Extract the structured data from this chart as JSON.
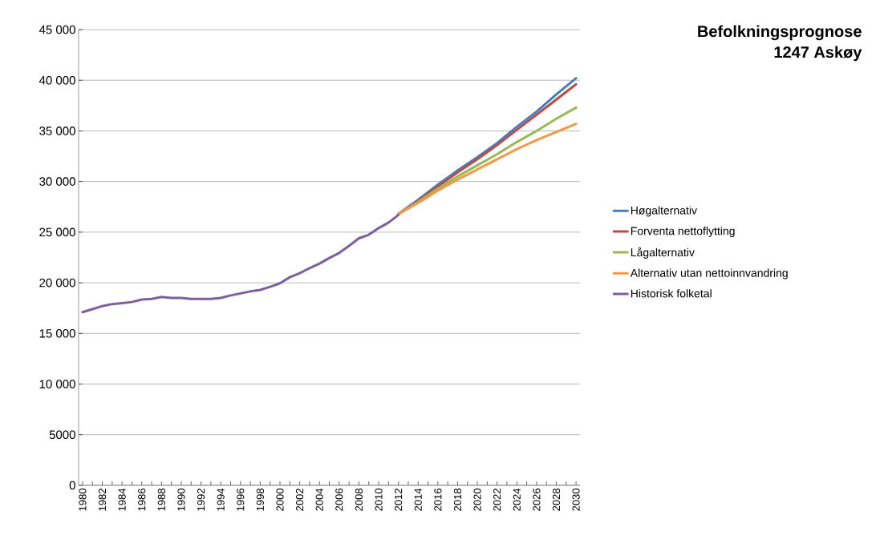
{
  "chart_data": {
    "type": "line",
    "title": "Befolkningsprognose",
    "subtitle": "1247 Askøy",
    "categories": [
      "1980",
      null,
      "1982",
      null,
      "1984",
      null,
      "1986",
      null,
      "1988",
      null,
      "1990",
      null,
      "1992",
      null,
      "1994",
      null,
      "1996",
      null,
      "1998",
      null,
      "2000",
      null,
      "2002",
      null,
      "2004",
      null,
      "2006",
      null,
      "2008",
      null,
      "2010",
      null,
      "2012",
      null,
      "2014",
      null,
      "2016",
      null,
      "2018",
      null,
      "2020",
      null,
      "2022",
      null,
      "2024",
      null,
      "2026",
      null,
      "2028",
      null,
      "2030"
    ],
    "series": [
      {
        "name": "Høgalternativ",
        "color": "#4a7ebb",
        "values": [
          null,
          null,
          null,
          null,
          null,
          null,
          null,
          null,
          null,
          null,
          null,
          null,
          null,
          null,
          null,
          null,
          null,
          null,
          null,
          null,
          null,
          null,
          null,
          null,
          null,
          null,
          null,
          null,
          null,
          null,
          null,
          null,
          26800,
          27500,
          28200,
          28950,
          29700,
          30400,
          31100,
          31750,
          32400,
          33100,
          33800,
          34600,
          35400,
          36150,
          36900,
          37750,
          38600,
          39400,
          40200
        ]
      },
      {
        "name": "Forventa nettoflytting",
        "color": "#be4b48",
        "values": [
          null,
          null,
          null,
          null,
          null,
          null,
          null,
          null,
          null,
          null,
          null,
          null,
          null,
          null,
          null,
          null,
          null,
          null,
          null,
          null,
          null,
          null,
          null,
          null,
          null,
          null,
          null,
          null,
          null,
          null,
          null,
          null,
          26800,
          27450,
          28100,
          28800,
          29500,
          30200,
          30900,
          31550,
          32200,
          32900,
          33600,
          34350,
          35100,
          35850,
          36600,
          37350,
          38100,
          38850,
          39600
        ]
      },
      {
        "name": "Lågalternativ",
        "color": "#98b954",
        "values": [
          null,
          null,
          null,
          null,
          null,
          null,
          null,
          null,
          null,
          null,
          null,
          null,
          null,
          null,
          null,
          null,
          null,
          null,
          null,
          null,
          null,
          null,
          null,
          null,
          null,
          null,
          null,
          null,
          null,
          null,
          null,
          null,
          26800,
          27400,
          28000,
          28650,
          29300,
          29900,
          30500,
          31050,
          31600,
          32150,
          32700,
          33300,
          33900,
          34450,
          35000,
          35600,
          36200,
          36750,
          37300
        ]
      },
      {
        "name": "Alternativ utan nettoinnvandring",
        "color": "#f79646",
        "values": [
          null,
          null,
          null,
          null,
          null,
          null,
          null,
          null,
          null,
          null,
          null,
          null,
          null,
          null,
          null,
          null,
          null,
          null,
          null,
          null,
          null,
          null,
          null,
          null,
          null,
          null,
          null,
          null,
          null,
          null,
          null,
          null,
          26800,
          27350,
          27900,
          28500,
          29100,
          29650,
          30200,
          30700,
          31200,
          31700,
          32200,
          32700,
          33200,
          33650,
          34100,
          34500,
          34900,
          35300,
          35700
        ]
      },
      {
        "name": "Historisk folketal",
        "color": "#7d5fa0",
        "values": [
          17100,
          17400,
          17700,
          17900,
          18000,
          18100,
          18350,
          18400,
          18600,
          18500,
          18500,
          18400,
          18400,
          18400,
          18500,
          18750,
          18950,
          19150,
          19300,
          19600,
          19950,
          20550,
          20950,
          21450,
          21900,
          22450,
          22950,
          23650,
          24400,
          24750,
          25400,
          25950,
          26700,
          null,
          null,
          null,
          null,
          null,
          null,
          null,
          null,
          null,
          null,
          null,
          null,
          null,
          null,
          null,
          null,
          null,
          null
        ]
      }
    ],
    "ylim": [
      0,
      45000
    ],
    "yticks": [
      0,
      5000,
      {
        "value": 10000,
        "label": "10 000"
      },
      {
        "value": 15000,
        "label": "15 000"
      },
      {
        "value": 20000,
        "label": "20 000"
      },
      {
        "value": 25000,
        "label": "25 000"
      },
      {
        "value": 30000,
        "label": "30 000"
      },
      {
        "value": 35000,
        "label": "35 000"
      },
      {
        "value": 40000,
        "label": "40 000"
      },
      {
        "value": 45000,
        "label": "45 000"
      }
    ],
    "grid": "y",
    "legend": "right",
    "marker": "none",
    "line_style": "solid"
  }
}
